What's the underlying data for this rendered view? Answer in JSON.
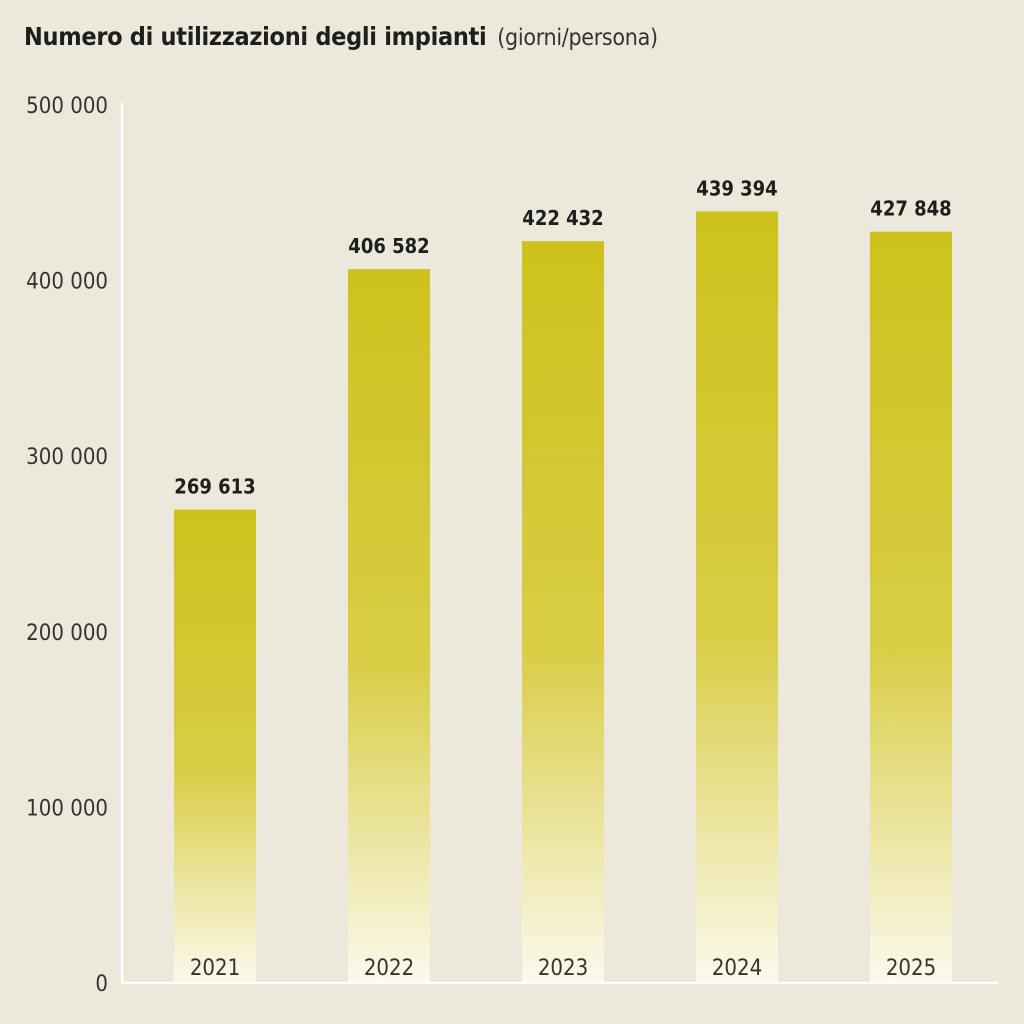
{
  "chart_data": {
    "type": "bar",
    "title": "Numero di utilizzazioni degli impianti",
    "subtitle": "(giorni/persona)",
    "categories": [
      "2021",
      "2022",
      "2023",
      "2024",
      "2025"
    ],
    "values": [
      269613,
      406582,
      422432,
      439394,
      427848
    ],
    "value_labels": [
      "269 613",
      "406 582",
      "422 432",
      "439 394",
      "427 848"
    ],
    "yticks": [
      0,
      100000,
      200000,
      300000,
      400000,
      500000
    ],
    "ytick_labels": [
      "0",
      "100 000",
      "200 000",
      "300 000",
      "400 000",
      "500 000"
    ],
    "ylim": [
      0,
      500000
    ],
    "xlabel": "",
    "ylabel": "",
    "grid": false,
    "bar_color_top": "#cec21d",
    "bar_color_bottom": "#fbf9ec",
    "axis_color": "#ffffff",
    "background": "#ece8db"
  }
}
